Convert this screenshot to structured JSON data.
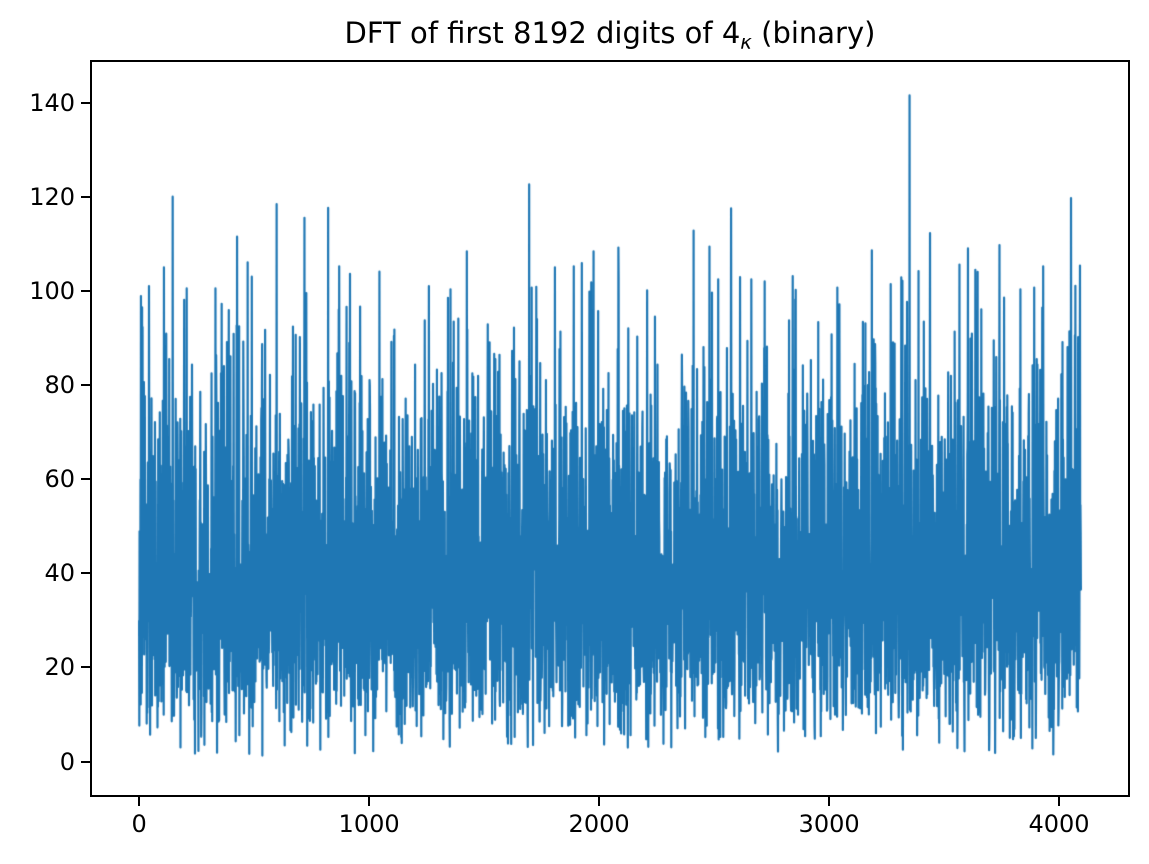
{
  "figure": {
    "background": "#ffffff",
    "title": {
      "prefix": "DFT of first 8192 digits of 4",
      "subscript": "κ",
      "suffix": " (binary)"
    }
  },
  "chart_data": {
    "type": "line",
    "title": "DFT of first 8192 digits of 4κ (binary)",
    "xlabel": "",
    "ylabel": "",
    "legend": null,
    "grid": false,
    "line_color": "#1f77b4",
    "line_width": 2.2,
    "x_ticks": [
      0,
      1000,
      2000,
      3000,
      4000
    ],
    "y_ticks": [
      0,
      20,
      40,
      60,
      80,
      100,
      120,
      140
    ],
    "xlim": [
      -204.8,
      4299.8
    ],
    "ylim": [
      -7.1,
      148.6
    ],
    "n_points": 4096,
    "x_start": 0,
    "x_end": 4095,
    "noise": {
      "model": "rayleigh",
      "sigma": 32,
      "seed": 20240601,
      "soft_cap": 100,
      "cap_compress": 0.3,
      "floor": 0.8,
      "typical_band": [
        18,
        75
      ],
      "mean_magnitude": 40
    },
    "peaks": [
      [
        13,
        96.5
      ],
      [
        43,
        101
      ],
      [
        108,
        105
      ],
      [
        146,
        120
      ],
      [
        207,
        100.5
      ],
      [
        426,
        111.5
      ],
      [
        490,
        103
      ],
      [
        598,
        118.4
      ],
      [
        719,
        115.5
      ],
      [
        822,
        117.6
      ],
      [
        870,
        105.2
      ],
      [
        917,
        103.6
      ],
      [
        1343,
        98.5
      ],
      [
        1425,
        108.4
      ],
      [
        1696,
        122.6
      ],
      [
        1808,
        105
      ],
      [
        1890,
        105.2
      ],
      [
        1976,
        108.4
      ],
      [
        2084,
        109.2
      ],
      [
        2243,
        94.5
      ],
      [
        2411,
        112.8
      ],
      [
        2574,
        117.5
      ],
      [
        2613,
        102.9
      ],
      [
        2842,
        103.1
      ],
      [
        3036,
        100.7
      ],
      [
        3186,
        108.6
      ],
      [
        3268,
        101.4
      ],
      [
        3350,
        141.5
      ],
      [
        3389,
        104.2
      ],
      [
        3604,
        109
      ],
      [
        3741,
        109.7
      ],
      [
        3832,
        100.3
      ],
      [
        3931,
        105.2
      ],
      [
        4052,
        119.7
      ]
    ],
    "max_value": 141.5,
    "axis_color": "#000000"
  }
}
